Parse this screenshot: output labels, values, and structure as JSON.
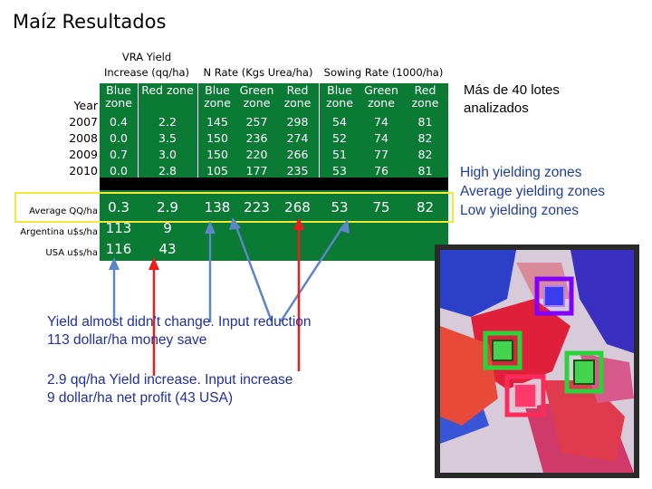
{
  "title": "Maíz Resultados",
  "table": {
    "group_headers": {
      "vra": "VRA Yield\nIncrease (qq/ha)",
      "nrate": "N Rate (Kgs Urea/ha)",
      "sowing": "Sowing Rate (1000/ha)"
    },
    "columns": [
      "Blue zone",
      "Red zone",
      "Blue zone",
      "Green zone",
      "Red zone",
      "Blue zone",
      "Green zone",
      "Red zone"
    ],
    "year_label": "Year",
    "rows": [
      {
        "year": "2007",
        "values": [
          "0.4",
          "2.2",
          "145",
          "257",
          "298",
          "54",
          "74",
          "81"
        ]
      },
      {
        "year": "2008",
        "values": [
          "0.0",
          "3.5",
          "150",
          "236",
          "274",
          "52",
          "74",
          "82"
        ]
      },
      {
        "year": "2009",
        "values": [
          "0.7",
          "3.0",
          "150",
          "220",
          "266",
          "51",
          "77",
          "82"
        ]
      },
      {
        "year": "2010",
        "values": [
          "0.0",
          "2.8",
          "105",
          "177",
          "235",
          "53",
          "76",
          "81"
        ]
      }
    ],
    "average": {
      "label": "Average QQ/ha",
      "values": [
        "0.3",
        "2.9",
        "138",
        "223",
        "268",
        "53",
        "75",
        "82"
      ]
    },
    "argentina": {
      "label": "Argentina u$s/ha",
      "values": [
        "113",
        "9"
      ]
    },
    "usa": {
      "label": "USA u$s/ha",
      "values": [
        "116",
        "43"
      ]
    }
  },
  "side_note": "Más de 40 lotes analizados",
  "legend": [
    "High yielding zones",
    "Average yielding zones",
    "Low yielding zones"
  ],
  "notes": {
    "blue": "Yield almost didn’t change. Input reduction\n113 dollar/ha money save",
    "red": "2.9 qq/ha Yield increase. Input increase\n9 dollar/ha net profit (43 USA)"
  },
  "colors": {
    "table_bg": "#0a7a34",
    "highlight_box": "#f2e83a",
    "blue_arrow": "#5b86c8",
    "red_arrow": "#ee1c1c",
    "note_text": "#1f2fa8"
  }
}
